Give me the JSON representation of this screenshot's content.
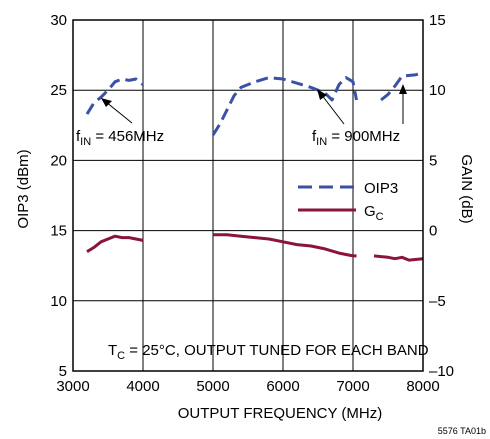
{
  "chart_data": {
    "type": "line",
    "xlabel": "OUTPUT FREQUENCY (MHz)",
    "ylabel_left": "OIP3 (dBm)",
    "ylabel_right": "GAIN (dB)",
    "xlim": [
      3000,
      8000
    ],
    "ylim_left": [
      5,
      30
    ],
    "ylim_right": [
      -10,
      15
    ],
    "x_ticks": [
      "3000",
      "4000",
      "5000",
      "6000",
      "7000",
      "8000"
    ],
    "y_left_ticks": [
      "5",
      "10",
      "15",
      "20",
      "25",
      "30"
    ],
    "y_right_ticks": [
      "–10",
      "–5",
      "0",
      "5",
      "10",
      "15"
    ],
    "grid": true,
    "legend_position": "right-middle",
    "series": [
      {
        "name": "OIP3",
        "axis": "left",
        "style": "dashed",
        "color": "#3a52a6",
        "segments": [
          [
            [
              3200,
              23.3
            ],
            [
              3300,
              24.1
            ],
            [
              3400,
              24.5
            ],
            [
              3500,
              25.0
            ],
            [
              3600,
              25.6
            ],
            [
              3700,
              25.8
            ],
            [
              3800,
              25.7
            ],
            [
              3900,
              25.8
            ],
            [
              4000,
              25.4
            ]
          ],
          [
            [
              5000,
              21.8
            ],
            [
              5100,
              22.6
            ],
            [
              5200,
              23.6
            ],
            [
              5300,
              24.6
            ],
            [
              5400,
              25.2
            ],
            [
              5600,
              25.6
            ],
            [
              5800,
              25.9
            ],
            [
              6000,
              25.8
            ],
            [
              6200,
              25.5
            ],
            [
              6400,
              25.2
            ],
            [
              6600,
              24.8
            ],
            [
              6700,
              24.3
            ],
            [
              6800,
              25.4
            ],
            [
              6900,
              25.9
            ],
            [
              7000,
              25.6
            ],
            [
              7050,
              24.3
            ]
          ],
          [
            [
              7400,
              24.3
            ],
            [
              7500,
              24.7
            ],
            [
              7600,
              25.3
            ],
            [
              7700,
              26.0
            ],
            [
              7900,
              26.1
            ],
            [
              8000,
              26.3
            ]
          ]
        ]
      },
      {
        "name": "GC",
        "axis": "right",
        "style": "solid",
        "color": "#8a1538",
        "segments": [
          [
            [
              3200,
              -1.5
            ],
            [
              3300,
              -1.2
            ],
            [
              3400,
              -0.8
            ],
            [
              3500,
              -0.6
            ],
            [
              3600,
              -0.4
            ],
            [
              3700,
              -0.5
            ],
            [
              3800,
              -0.5
            ],
            [
              3900,
              -0.6
            ],
            [
              4000,
              -0.7
            ]
          ],
          [
            [
              5000,
              -0.3
            ],
            [
              5200,
              -0.3
            ],
            [
              5400,
              -0.4
            ],
            [
              5600,
              -0.5
            ],
            [
              5800,
              -0.6
            ],
            [
              6000,
              -0.8
            ],
            [
              6200,
              -1.0
            ],
            [
              6400,
              -1.1
            ],
            [
              6600,
              -1.3
            ],
            [
              6800,
              -1.6
            ],
            [
              7000,
              -1.8
            ],
            [
              7050,
              -1.8
            ]
          ],
          [
            [
              7300,
              -1.8
            ],
            [
              7500,
              -1.9
            ],
            [
              7600,
              -2.0
            ],
            [
              7700,
              -1.9
            ],
            [
              7800,
              -2.1
            ],
            [
              8000,
              -2.0
            ]
          ]
        ]
      }
    ],
    "legend": {
      "oip3_label": "OIP3",
      "gc_label_main": "G",
      "gc_label_sub": "C"
    },
    "annotations": {
      "fin_left_main": "f",
      "fin_left_sub": "IN",
      "fin_left_rest": " = 456MHz",
      "fin_right_main": "f",
      "fin_right_sub": "IN",
      "fin_right_rest": " = 900MHz",
      "tc_main": "T",
      "tc_sub": "C",
      "tc_rest": " = 25°C, OUTPUT TUNED FOR EACH BAND"
    },
    "footer": "5576 TA01b"
  }
}
